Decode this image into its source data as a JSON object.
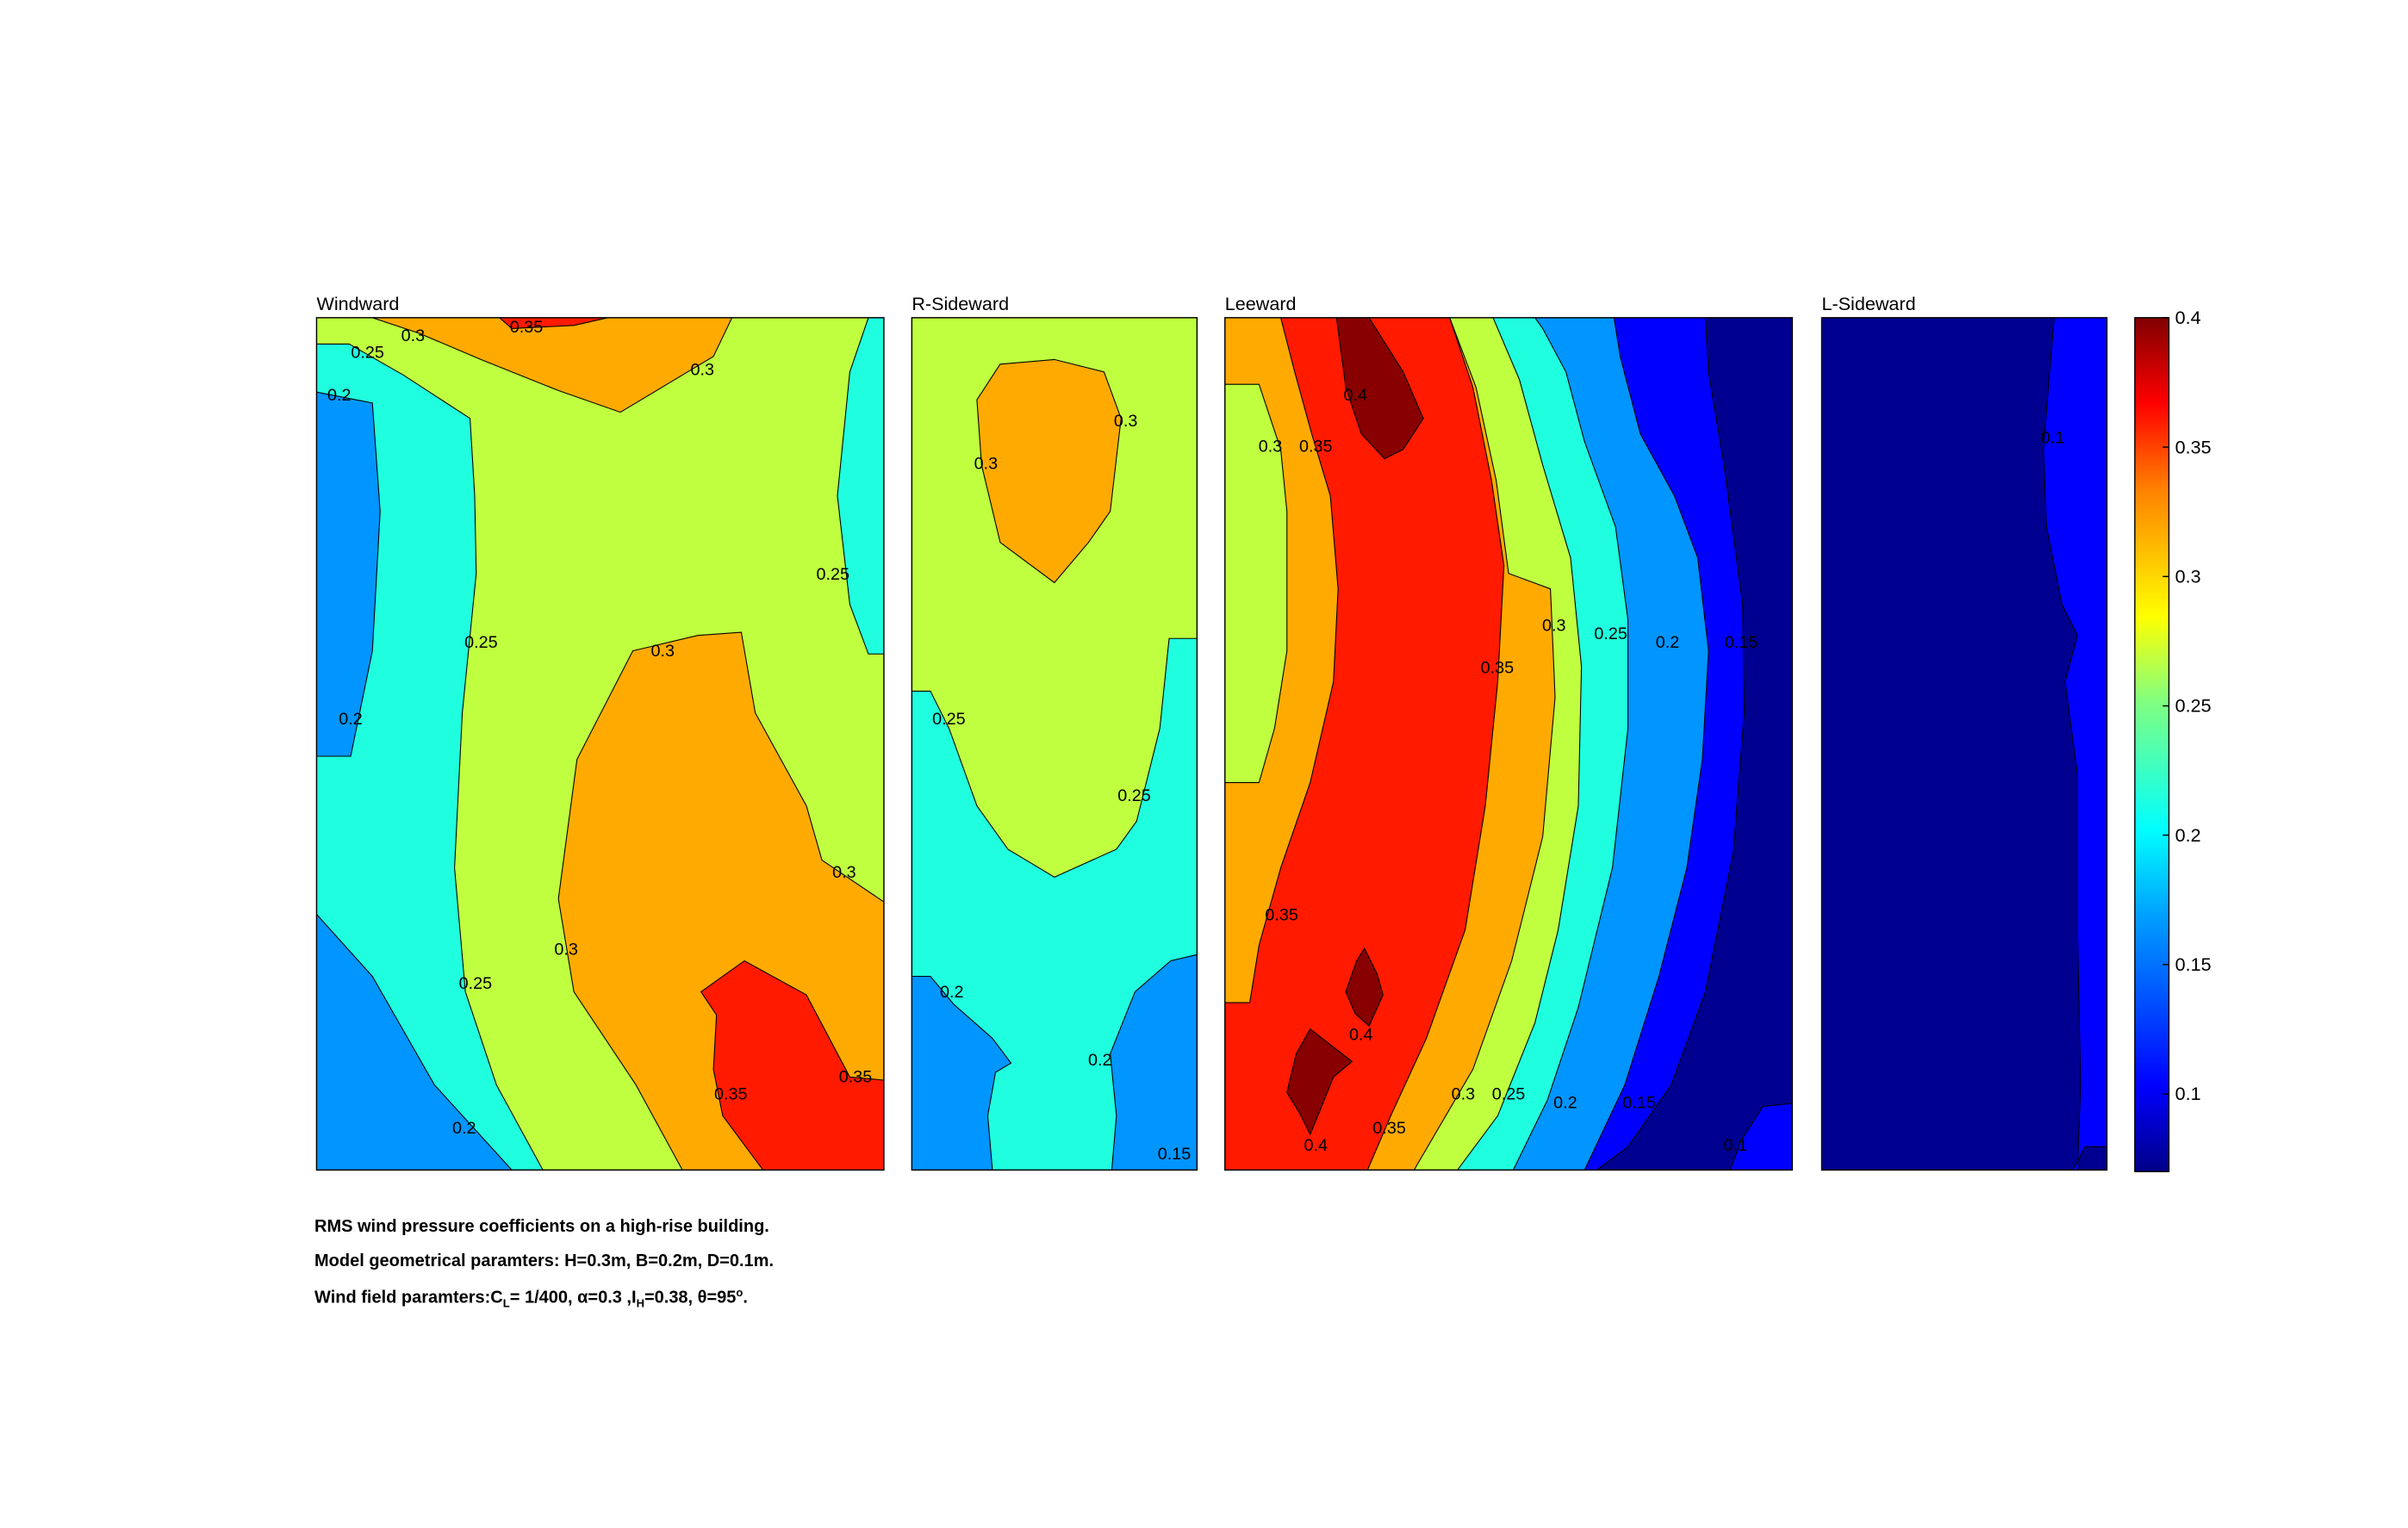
{
  "chart_data": {
    "type": "contour",
    "description_printed": false,
    "colormap": "jet",
    "clim": [
      0.07,
      0.4
    ],
    "colorbar": {
      "ticks": [
        "0.1",
        "0.15",
        "0.2",
        "0.25",
        "0.3",
        "0.35",
        "0.4"
      ],
      "tick_values": [
        0.1,
        0.15,
        0.2,
        0.25,
        0.3,
        0.35,
        0.4
      ],
      "placement": "right"
    },
    "panels": [
      {
        "name": "Windward",
        "fill_levels": [
          0.2,
          0.25,
          0.3,
          0.35,
          0.4
        ],
        "contour_labels": [
          {
            "text": "0.35",
            "u": 0.37,
            "v": 0.01
          },
          {
            "text": "0.3",
            "u": 0.17,
            "v": 0.02
          },
          {
            "text": "0.25",
            "u": 0.09,
            "v": 0.04
          },
          {
            "text": "0.2",
            "u": 0.04,
            "v": 0.09
          },
          {
            "text": "0.3",
            "u": 0.68,
            "v": 0.06
          },
          {
            "text": "0.25",
            "u": 0.91,
            "v": 0.3
          },
          {
            "text": "0.25",
            "u": 0.29,
            "v": 0.38
          },
          {
            "text": "0.3",
            "u": 0.61,
            "v": 0.39
          },
          {
            "text": "0.2",
            "u": 0.06,
            "v": 0.47
          },
          {
            "text": "0.3",
            "u": 0.93,
            "v": 0.65
          },
          {
            "text": "0.3",
            "u": 0.44,
            "v": 0.74
          },
          {
            "text": "0.25",
            "u": 0.28,
            "v": 0.78
          },
          {
            "text": "0.35",
            "u": 0.73,
            "v": 0.91
          },
          {
            "text": "0.35",
            "u": 0.95,
            "v": 0.89
          },
          {
            "text": "0.2",
            "u": 0.26,
            "v": 0.95
          }
        ]
      },
      {
        "name": "R-Sideward",
        "fill_levels": [
          0.15,
          0.2,
          0.25,
          0.3
        ],
        "contour_labels": [
          {
            "text": "0.3",
            "u": 0.75,
            "v": 0.12
          },
          {
            "text": "0.3",
            "u": 0.26,
            "v": 0.17
          },
          {
            "text": "0.25",
            "u": 0.13,
            "v": 0.47
          },
          {
            "text": "0.25",
            "u": 0.78,
            "v": 0.56
          },
          {
            "text": "0.2",
            "u": 0.14,
            "v": 0.79
          },
          {
            "text": "0.2",
            "u": 0.66,
            "v": 0.87
          },
          {
            "text": "0.15",
            "u": 0.92,
            "v": 0.98
          }
        ]
      },
      {
        "name": "Leeward",
        "fill_levels": [
          0.1,
          0.15,
          0.2,
          0.25,
          0.3,
          0.35,
          0.4
        ],
        "contour_labels": [
          {
            "text": "0.4",
            "u": 0.23,
            "v": 0.09
          },
          {
            "text": "0.3",
            "u": 0.08,
            "v": 0.15
          },
          {
            "text": "0.35",
            "u": 0.16,
            "v": 0.15
          },
          {
            "text": "0.3",
            "u": 0.58,
            "v": 0.36
          },
          {
            "text": "0.25",
            "u": 0.68,
            "v": 0.37
          },
          {
            "text": "0.2",
            "u": 0.78,
            "v": 0.38
          },
          {
            "text": "0.15",
            "u": 0.91,
            "v": 0.38
          },
          {
            "text": "0.35",
            "u": 0.48,
            "v": 0.41
          },
          {
            "text": "0.35",
            "u": 0.1,
            "v": 0.7
          },
          {
            "text": "0.4",
            "u": 0.24,
            "v": 0.84
          },
          {
            "text": "0.3",
            "u": 0.42,
            "v": 0.91
          },
          {
            "text": "0.25",
            "u": 0.5,
            "v": 0.91
          },
          {
            "text": "0.2",
            "u": 0.6,
            "v": 0.92
          },
          {
            "text": "0.15",
            "u": 0.73,
            "v": 0.92
          },
          {
            "text": "0.4",
            "u": 0.16,
            "v": 0.97
          },
          {
            "text": "0.35",
            "u": 0.29,
            "v": 0.95
          },
          {
            "text": "0.1",
            "u": 0.9,
            "v": 0.97
          }
        ]
      },
      {
        "name": "L-Sideward",
        "fill_levels": [
          0.07,
          0.1
        ],
        "contour_labels": [
          {
            "text": "0.1",
            "u": 0.81,
            "v": 0.14
          }
        ]
      }
    ]
  },
  "captions": {
    "line1": "RMS wind pressure coefficients on a high-rise building.",
    "line2": "Model geometrical paramters: H=0.3m, B=0.2m, D=0.1m.",
    "line3_prefix": "Wind field paramters:C",
    "line3_sub1": "L",
    "line3_mid": "= 1/400, α=0.3 ,I",
    "line3_sub2": "H",
    "line3_mid2": "=0.38, θ=95",
    "line3_sup": "o",
    "line3_end": "."
  }
}
